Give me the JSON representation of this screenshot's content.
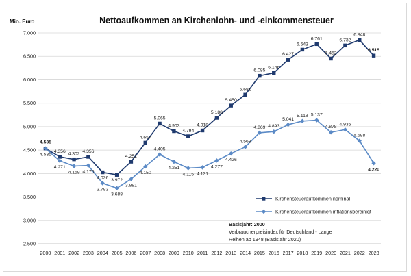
{
  "chart_data": {
    "type": "line",
    "title": "Nettoaufkommen an Kirchenlohn- und -einkommensteuer",
    "unit_label": "Mio. Euro",
    "x": [
      "2000",
      "2001",
      "2002",
      "2003",
      "2004",
      "2005",
      "2006",
      "2007",
      "2008",
      "2009",
      "2010",
      "2011",
      "2012",
      "2013",
      "2014",
      "2015",
      "2016",
      "2017",
      "2018",
      "2019",
      "2020",
      "2021",
      "2022",
      "2023"
    ],
    "ylim": [
      2500,
      7000
    ],
    "yticks": [
      2500,
      3000,
      3500,
      4000,
      4500,
      5000,
      5500,
      6000,
      6500,
      7000
    ],
    "ytick_labels": [
      "2.500",
      "3.000",
      "3.500",
      "4.000",
      "4.500",
      "5.000",
      "5.500",
      "6.000",
      "6.500",
      "7.000"
    ],
    "grid": true,
    "legend_position": "bottom-right",
    "series": [
      {
        "name": "Kirchensteueraufkommen nominal",
        "color": "#1f3a6e",
        "marker": "square",
        "values": [
          4535,
          4356,
          4302,
          4356,
          4026,
          3972,
          4252,
          4657,
          5065,
          4903,
          4794,
          4918,
          5188,
          5450,
          5681,
          6085,
          6146,
          6427,
          6643,
          6761,
          6452,
          6732,
          6848,
          6515
        ],
        "labels": [
          "4.535",
          "4.356",
          "4.302",
          "4.356",
          "4.026",
          "3.972",
          "4.252",
          "4.657",
          "5.065",
          "4.903",
          "4.794",
          "4.918",
          "5.188",
          "5.450",
          "5.681",
          "6.085",
          "6.146",
          "6.427",
          "6.643",
          "6.761",
          "6.452",
          "6.732",
          "6.848",
          "6.515"
        ]
      },
      {
        "name": "Kirchensteueraufkommen inflationsbereinigt",
        "color": "#5b8ac6",
        "marker": "diamond",
        "values": [
          4535,
          4271,
          4159,
          4170,
          3793,
          3688,
          3881,
          4150,
          4405,
          4251,
          4115,
          4131,
          4277,
          4426,
          4568,
          4869,
          4893,
          5041,
          5118,
          5137,
          4878,
          4936,
          4698,
          4220
        ],
        "labels": [
          "4.535",
          "4.271",
          "4.159",
          "4.170",
          "3.793",
          "3.688",
          "3.881",
          "4.150",
          "4.405",
          "4.251",
          "4.115",
          "4.131",
          "4.277",
          "4.426",
          "4.568",
          "4.869",
          "4.893",
          "5.041",
          "5.118",
          "5.137",
          "4.878",
          "4.936",
          "4.698",
          "4.220"
        ]
      }
    ],
    "notes": {
      "basis": "Basisjahr: 2000",
      "source_line1": "Verbraucherpreisindex für Deutschland - Lange",
      "source_line2": "Reihen ab 1948 (Basisjahr 2020)"
    }
  }
}
